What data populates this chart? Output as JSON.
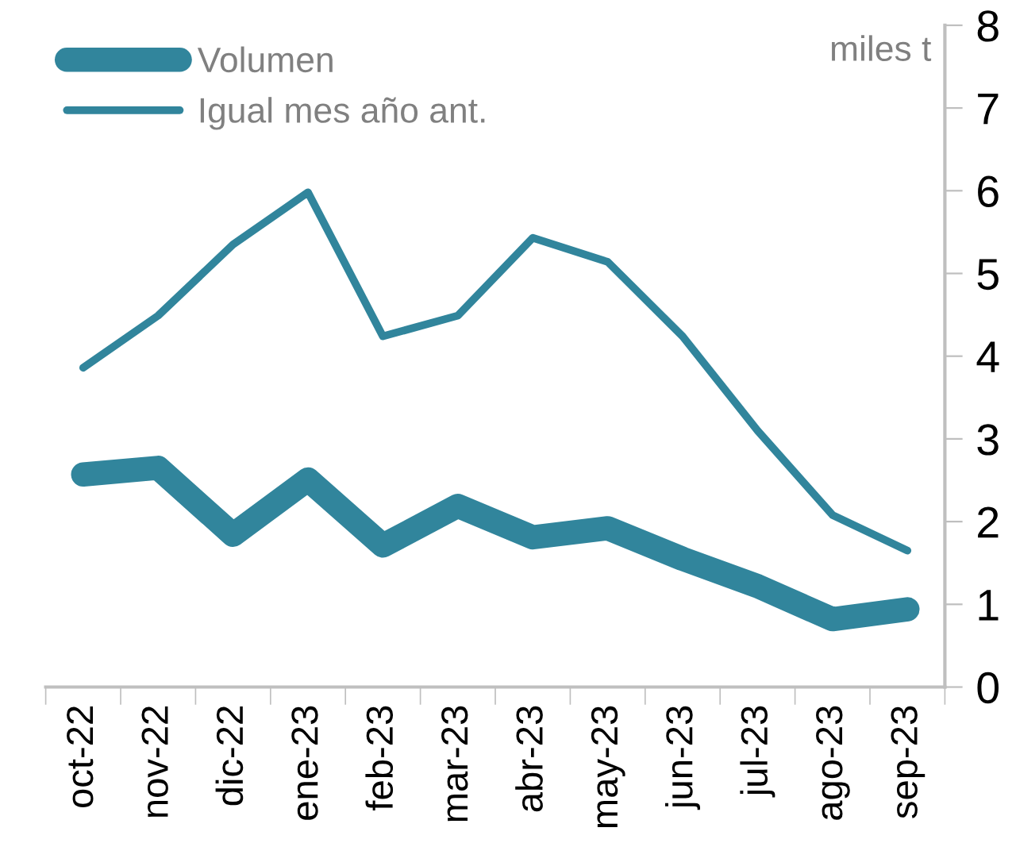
{
  "chart_data": {
    "type": "line",
    "ylabel": "miles t",
    "categories": [
      "oct-22",
      "nov-22",
      "dic-22",
      "ene-23",
      "feb-23",
      "mar-23",
      "abr-23",
      "may-23",
      "jun-23",
      "jul-23",
      "ago-23",
      "sep-23"
    ],
    "series": [
      {
        "name": "Volumen",
        "color": "#31859c",
        "values": [
          2.57,
          2.65,
          1.84,
          2.51,
          1.71,
          2.19,
          1.81,
          1.92,
          1.55,
          1.22,
          0.82,
          0.94
        ]
      },
      {
        "name": "Igual mes año ant.",
        "color": "#31859c",
        "values": [
          3.86,
          4.49,
          5.35,
          5.98,
          4.24,
          4.49,
          5.43,
          5.14,
          4.24,
          3.1,
          2.08,
          1.65
        ]
      }
    ],
    "ylim": [
      0,
      8
    ],
    "yticks": [
      0,
      1,
      2,
      3,
      4,
      5,
      6,
      7,
      8
    ],
    "grid": false,
    "legend": "top left",
    "marker": "none",
    "line_style": "solid"
  }
}
